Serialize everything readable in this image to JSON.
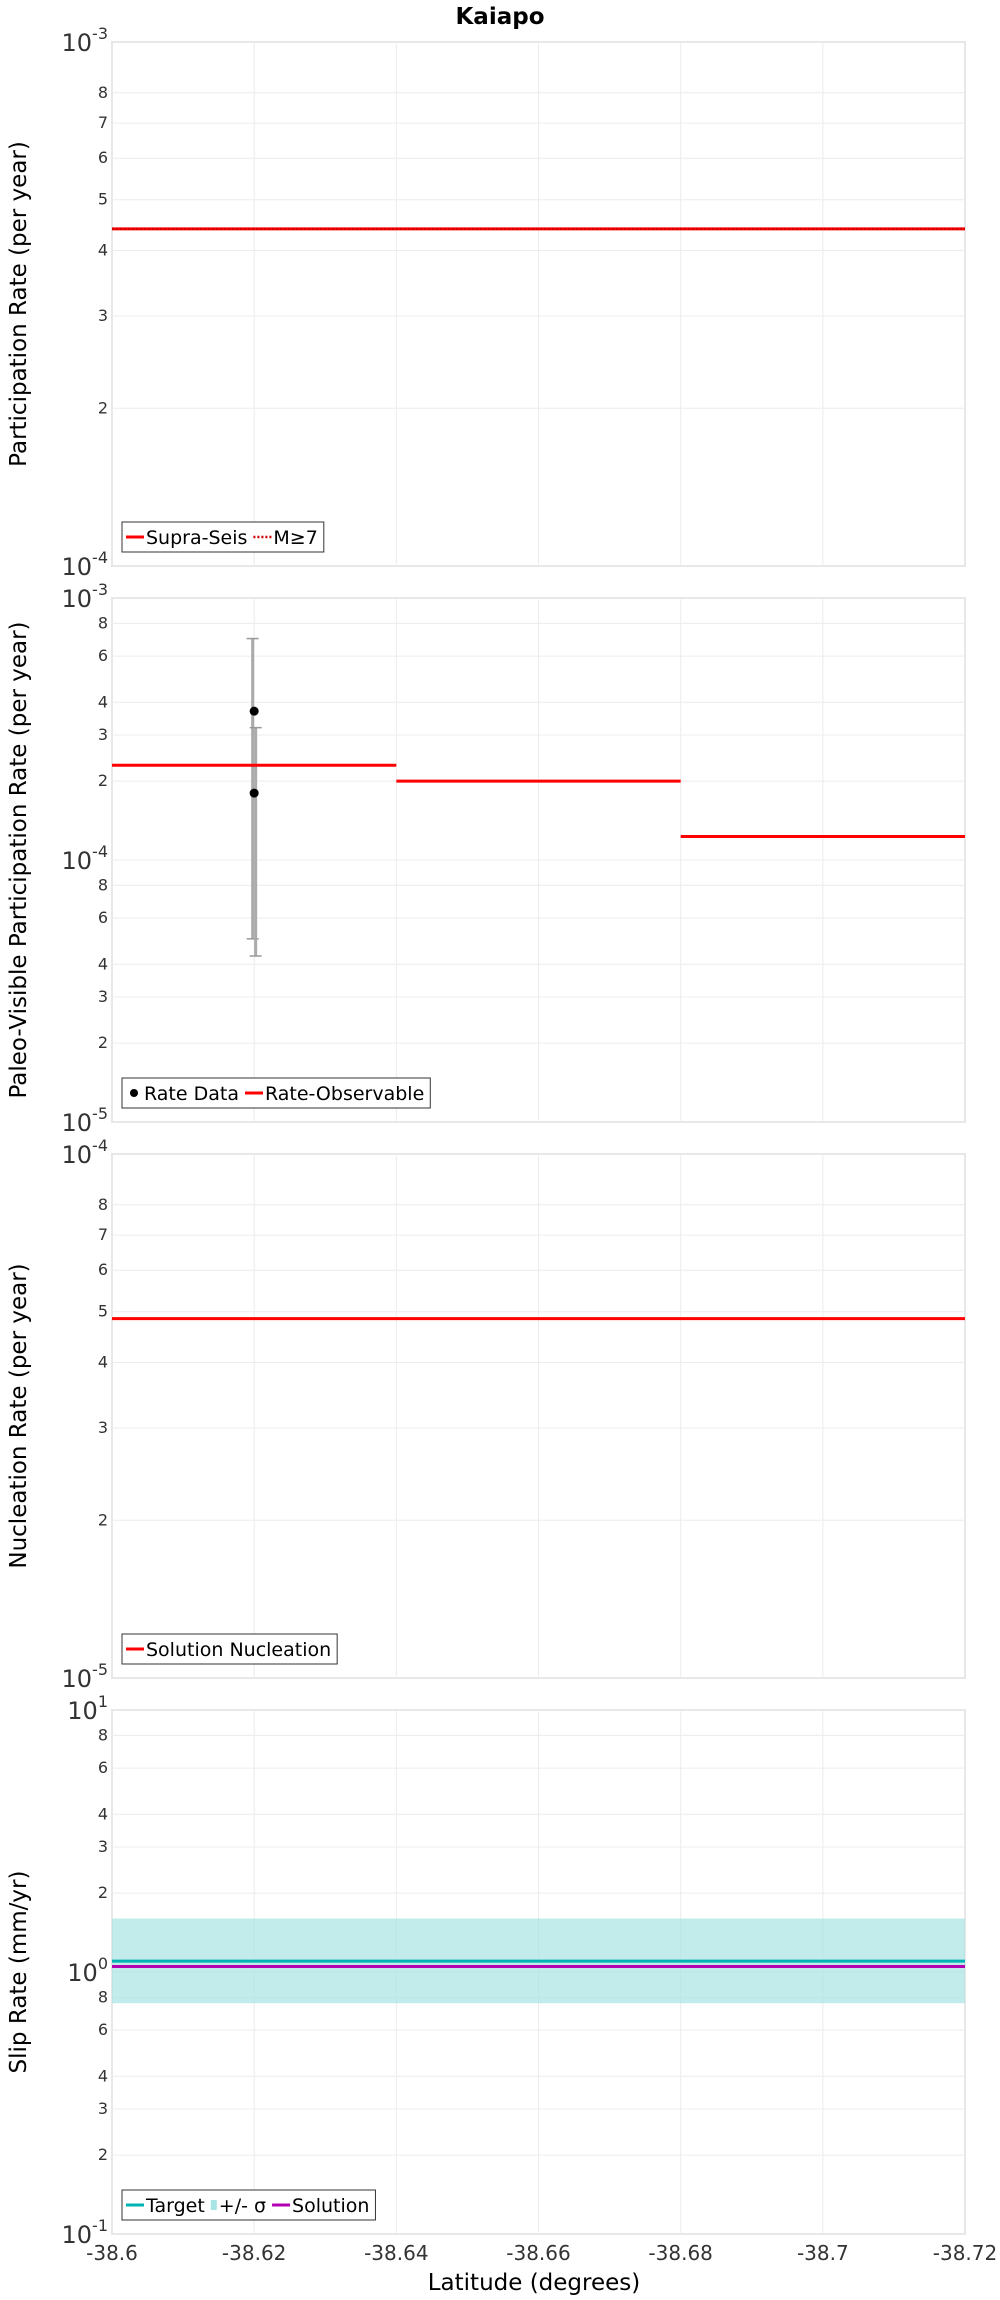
{
  "title": "Kaiapo",
  "xlabel": "Latitude (degrees)",
  "xlim": [
    -38.6,
    -38.72
  ],
  "xticks": [
    -38.6,
    -38.62,
    -38.64,
    -38.66,
    -38.68,
    -38.7,
    -38.72
  ],
  "xtick_labels": [
    "-38.6",
    "-38.62",
    "-38.64",
    "-38.66",
    "-38.68",
    "-38.7",
    "-38.72"
  ],
  "chart_data": [
    {
      "type": "line",
      "scale": "log",
      "ylabel": "Participation Rate (per year)",
      "ylim": [
        0.0001,
        0.001
      ],
      "ytick_labels": [
        {
          "value": 0.001,
          "mantissa": "10",
          "exp": "-3"
        },
        {
          "value": 0.0008,
          "mantissa": "8"
        },
        {
          "value": 0.0007,
          "mantissa": "7"
        },
        {
          "value": 0.0006,
          "mantissa": "6"
        },
        {
          "value": 0.0005,
          "mantissa": "5"
        },
        {
          "value": 0.0004,
          "mantissa": "4"
        },
        {
          "value": 0.0003,
          "mantissa": "3"
        },
        {
          "value": 0.0002,
          "mantissa": "2"
        },
        {
          "value": 0.0001,
          "mantissa": "10",
          "exp": "-4"
        }
      ],
      "series": [
        {
          "name": "Supra-Seis",
          "color": "#ff0000",
          "style": "solid",
          "segments": [
            {
              "x": [
                -38.6,
                -38.72
              ],
              "y": 0.00044
            }
          ]
        },
        {
          "name": "M≥7",
          "color": "#cc0000",
          "style": "dotted",
          "segments": [
            {
              "x": [
                -38.6,
                -38.72
              ],
              "y": 0.00044
            }
          ]
        }
      ],
      "legend": {
        "position": "bottom-left",
        "entries": [
          "Supra-Seis",
          "M≥7"
        ]
      }
    },
    {
      "type": "line",
      "scale": "log",
      "ylabel": "Paleo-Visible Participation Rate (per year)",
      "ylim": [
        1e-05,
        0.001
      ],
      "ytick_labels": [
        {
          "value": 0.001,
          "mantissa": "10",
          "exp": "-3"
        },
        {
          "value": 0.0008,
          "mantissa": "8"
        },
        {
          "value": 0.0006,
          "mantissa": "6"
        },
        {
          "value": 0.0004,
          "mantissa": "4"
        },
        {
          "value": 0.0003,
          "mantissa": "3"
        },
        {
          "value": 0.0002,
          "mantissa": "2"
        },
        {
          "value": 0.0001,
          "mantissa": "10",
          "exp": "-4"
        },
        {
          "value": 8e-05,
          "mantissa": "8"
        },
        {
          "value": 6e-05,
          "mantissa": "6"
        },
        {
          "value": 4e-05,
          "mantissa": "4"
        },
        {
          "value": 3e-05,
          "mantissa": "3"
        },
        {
          "value": 2e-05,
          "mantissa": "2"
        },
        {
          "value": 1e-05,
          "mantissa": "10",
          "exp": "-5"
        }
      ],
      "series": [
        {
          "name": "Rate-Observable",
          "color": "#ff0000",
          "style": "solid",
          "segments": [
            {
              "x": [
                -38.6,
                -38.64
              ],
              "y": 0.00023
            },
            {
              "x": [
                -38.64,
                -38.68
              ],
              "y": 0.0002
            },
            {
              "x": [
                -38.68,
                -38.72
              ],
              "y": 0.000123
            }
          ]
        }
      ],
      "points": {
        "name": "Rate Data",
        "color": "#000000",
        "data": [
          {
            "x": -38.62,
            "y": 0.00037,
            "lo": 5e-05,
            "hi": 0.0007
          },
          {
            "x": -38.62,
            "y": 0.00018,
            "lo": 4.3e-05,
            "hi": 0.00032
          }
        ]
      },
      "legend": {
        "position": "bottom-left",
        "entries": [
          "Rate Data",
          "Rate-Observable"
        ]
      }
    },
    {
      "type": "line",
      "scale": "log",
      "ylabel": "Nucleation Rate (per year)",
      "ylim": [
        1e-05,
        0.0001
      ],
      "ytick_labels": [
        {
          "value": 0.0001,
          "mantissa": "10",
          "exp": "-4"
        },
        {
          "value": 8e-05,
          "mantissa": "8"
        },
        {
          "value": 7e-05,
          "mantissa": "7"
        },
        {
          "value": 6e-05,
          "mantissa": "6"
        },
        {
          "value": 5e-05,
          "mantissa": "5"
        },
        {
          "value": 4e-05,
          "mantissa": "4"
        },
        {
          "value": 3e-05,
          "mantissa": "3"
        },
        {
          "value": 2e-05,
          "mantissa": "2"
        },
        {
          "value": 1e-05,
          "mantissa": "10",
          "exp": "-5"
        }
      ],
      "series": [
        {
          "name": "Solution Nucleation",
          "color": "#ff0000",
          "style": "solid",
          "segments": [
            {
              "x": [
                -38.6,
                -38.72
              ],
              "y": 4.85e-05
            }
          ]
        }
      ],
      "legend": {
        "position": "bottom-left",
        "entries": [
          "Solution Nucleation"
        ]
      }
    },
    {
      "type": "line",
      "scale": "log",
      "ylabel": "Slip Rate (mm/yr)",
      "ylim": [
        0.1,
        10
      ],
      "ytick_labels": [
        {
          "value": 10,
          "mantissa": "10",
          "exp": "1"
        },
        {
          "value": 8,
          "mantissa": "8"
        },
        {
          "value": 6,
          "mantissa": "6"
        },
        {
          "value": 4,
          "mantissa": "4"
        },
        {
          "value": 3,
          "mantissa": "3"
        },
        {
          "value": 2,
          "mantissa": "2"
        },
        {
          "value": 1,
          "mantissa": "10",
          "exp": "0"
        },
        {
          "value": 0.8,
          "mantissa": "8"
        },
        {
          "value": 0.6,
          "mantissa": "6"
        },
        {
          "value": 0.4,
          "mantissa": "4"
        },
        {
          "value": 0.3,
          "mantissa": "3"
        },
        {
          "value": 0.2,
          "mantissa": "2"
        },
        {
          "value": 0.1,
          "mantissa": "10",
          "exp": "-1"
        }
      ],
      "band": {
        "name": "+/- σ",
        "color": "#a8e4e4",
        "lo": 0.76,
        "hi": 1.6
      },
      "series": [
        {
          "name": "Target",
          "color": "#00b3b3",
          "style": "solid",
          "segments": [
            {
              "x": [
                -38.6,
                -38.72
              ],
              "y": 1.1
            }
          ]
        },
        {
          "name": "Solution",
          "color": "#b300b3",
          "style": "solid",
          "segments": [
            {
              "x": [
                -38.6,
                -38.72
              ],
              "y": 1.05
            }
          ]
        }
      ],
      "legend": {
        "position": "bottom-left",
        "entries": [
          "Target",
          "+/- σ",
          "Solution"
        ]
      }
    }
  ]
}
